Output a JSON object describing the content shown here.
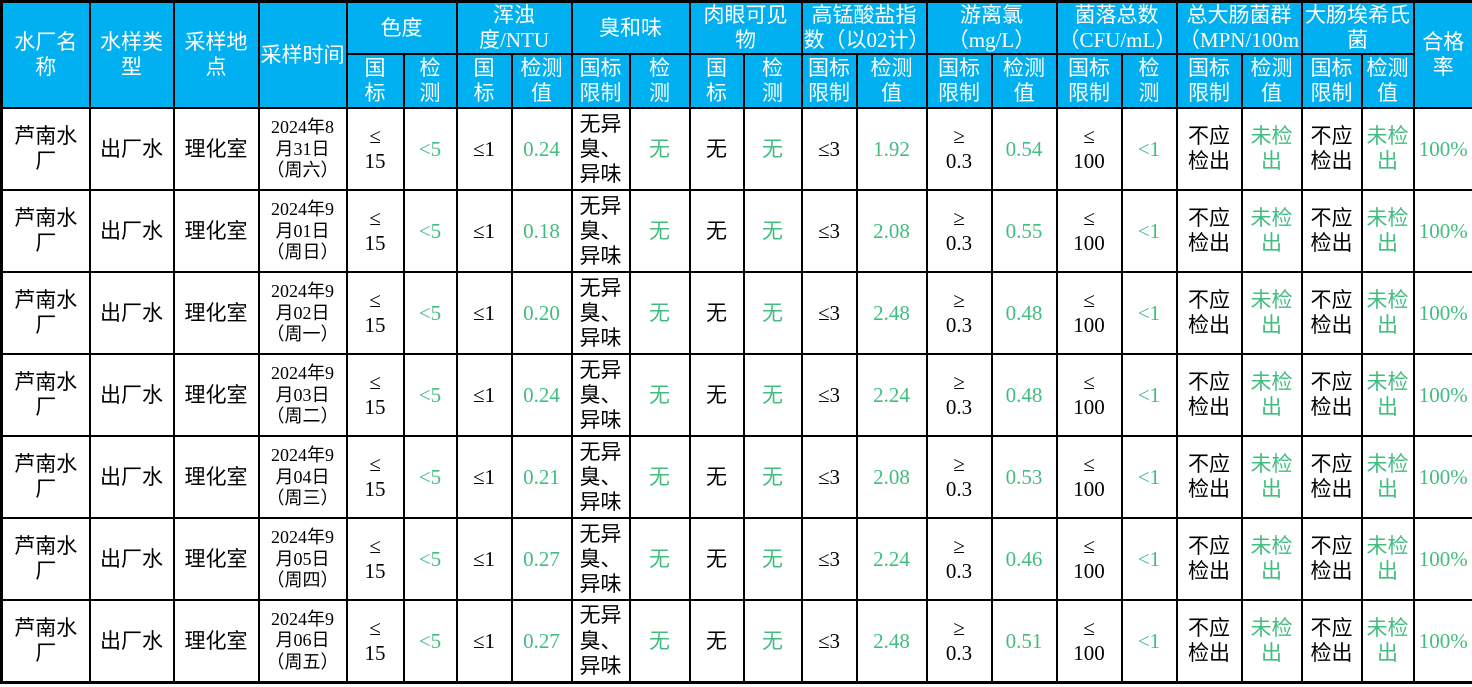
{
  "colors": {
    "header_bg": "#00B0F0",
    "header_text": "#FFFFFF",
    "value_green": "#42BD80",
    "text_black": "#000000",
    "grid": "#000000"
  },
  "table": {
    "columns": [
      {
        "key": "plant",
        "label": "水厂名称",
        "single": true
      },
      {
        "key": "sample_type",
        "label": "水样类型",
        "single": true
      },
      {
        "key": "location",
        "label": "采样地点",
        "single": true
      },
      {
        "key": "date",
        "label": "采样时间",
        "single": true
      },
      {
        "key": "chroma",
        "label": "色度",
        "sub": [
          {
            "key": "std",
            "label": "国\n标"
          },
          {
            "key": "test",
            "label": "检\n测"
          }
        ]
      },
      {
        "key": "turbidity",
        "label": "浑浊度/NTU",
        "sub": [
          {
            "key": "std",
            "label": "国\n标"
          },
          {
            "key": "test",
            "label": "检测\n值"
          }
        ]
      },
      {
        "key": "odor",
        "label": "臭和味",
        "sub": [
          {
            "key": "std",
            "label": "国标\n限制"
          },
          {
            "key": "test",
            "label": "检\n测"
          }
        ]
      },
      {
        "key": "visible",
        "label": "肉眼可见\n物",
        "sub": [
          {
            "key": "std",
            "label": "国\n标"
          },
          {
            "key": "test",
            "label": "检\n测"
          }
        ]
      },
      {
        "key": "permanganate",
        "label": "高锰酸盐指\n数（以02计）",
        "sub": [
          {
            "key": "std",
            "label": "国标\n限制"
          },
          {
            "key": "test",
            "label": "检测\n值"
          }
        ]
      },
      {
        "key": "chlorine",
        "label": "游离氯\n（mg/L）",
        "sub": [
          {
            "key": "std",
            "label": "国标\n限制"
          },
          {
            "key": "test",
            "label": "检测\n值"
          }
        ]
      },
      {
        "key": "colony",
        "label": "菌落总数\n（CFU/mL）",
        "sub": [
          {
            "key": "std",
            "label": "国标\n限制"
          },
          {
            "key": "test",
            "label": "检\n测"
          }
        ]
      },
      {
        "key": "coliform",
        "label": "总大肠菌群\n（MPN/100m",
        "sub": [
          {
            "key": "std",
            "label": "国标\n限制"
          },
          {
            "key": "test",
            "label": "检测\n值"
          }
        ]
      },
      {
        "key": "ecoli",
        "label": "大肠埃希氏\n菌",
        "sub": [
          {
            "key": "std",
            "label": "国标\n限制"
          },
          {
            "key": "test",
            "label": "检测\n值"
          }
        ]
      },
      {
        "key": "pass_rate",
        "label": "合格率",
        "single": true,
        "green": true
      }
    ],
    "rows": [
      {
        "plant": "芦南水厂",
        "sample_type": "出厂水",
        "location": "理化室",
        "date": "2024年8\n月31日\n（周六）",
        "chroma": {
          "std": "≤\n15",
          "test": "<5"
        },
        "turbidity": {
          "std": "≤1",
          "test": "0.24"
        },
        "odor": {
          "std": "无异\n臭、\n异味",
          "test": "无"
        },
        "visible": {
          "std": "无",
          "test": "无"
        },
        "permanganate": {
          "std": "≤3",
          "test": "1.92"
        },
        "chlorine": {
          "std": "≥\n0.3",
          "test": "0.54"
        },
        "colony": {
          "std": "≤\n100",
          "test": "<1"
        },
        "coliform": {
          "std": "不应\n检出",
          "test": "未检\n出"
        },
        "ecoli": {
          "std": "不应\n检出",
          "test": "未检\n出"
        },
        "pass_rate": "100%"
      },
      {
        "plant": "芦南水厂",
        "sample_type": "出厂水",
        "location": "理化室",
        "date": "2024年9\n月01日\n（周日）",
        "chroma": {
          "std": "≤\n15",
          "test": "<5"
        },
        "turbidity": {
          "std": "≤1",
          "test": "0.18"
        },
        "odor": {
          "std": "无异\n臭、\n异味",
          "test": "无"
        },
        "visible": {
          "std": "无",
          "test": "无"
        },
        "permanganate": {
          "std": "≤3",
          "test": "2.08"
        },
        "chlorine": {
          "std": "≥\n0.3",
          "test": "0.55"
        },
        "colony": {
          "std": "≤\n100",
          "test": "<1"
        },
        "coliform": {
          "std": "不应\n检出",
          "test": "未检\n出"
        },
        "ecoli": {
          "std": "不应\n检出",
          "test": "未检\n出"
        },
        "pass_rate": "100%"
      },
      {
        "plant": "芦南水厂",
        "sample_type": "出厂水",
        "location": "理化室",
        "date": "2024年9\n月02日\n（周一）",
        "chroma": {
          "std": "≤\n15",
          "test": "<5"
        },
        "turbidity": {
          "std": "≤1",
          "test": "0.20"
        },
        "odor": {
          "std": "无异\n臭、\n异味",
          "test": "无"
        },
        "visible": {
          "std": "无",
          "test": "无"
        },
        "permanganate": {
          "std": "≤3",
          "test": "2.48"
        },
        "chlorine": {
          "std": "≥\n0.3",
          "test": "0.48"
        },
        "colony": {
          "std": "≤\n100",
          "test": "<1"
        },
        "coliform": {
          "std": "不应\n检出",
          "test": "未检\n出"
        },
        "ecoli": {
          "std": "不应\n检出",
          "test": "未检\n出"
        },
        "pass_rate": "100%"
      },
      {
        "plant": "芦南水厂",
        "sample_type": "出厂水",
        "location": "理化室",
        "date": "2024年9\n月03日\n（周二）",
        "chroma": {
          "std": "≤\n15",
          "test": "<5"
        },
        "turbidity": {
          "std": "≤1",
          "test": "0.24"
        },
        "odor": {
          "std": "无异\n臭、\n异味",
          "test": "无"
        },
        "visible": {
          "std": "无",
          "test": "无"
        },
        "permanganate": {
          "std": "≤3",
          "test": "2.24"
        },
        "chlorine": {
          "std": "≥\n0.3",
          "test": "0.48"
        },
        "colony": {
          "std": "≤\n100",
          "test": "<1"
        },
        "coliform": {
          "std": "不应\n检出",
          "test": "未检\n出"
        },
        "ecoli": {
          "std": "不应\n检出",
          "test": "未检\n出"
        },
        "pass_rate": "100%"
      },
      {
        "plant": "芦南水厂",
        "sample_type": "出厂水",
        "location": "理化室",
        "date": "2024年9\n月04日\n（周三）",
        "chroma": {
          "std": "≤\n15",
          "test": "<5"
        },
        "turbidity": {
          "std": "≤1",
          "test": "0.21"
        },
        "odor": {
          "std": "无异\n臭、\n异味",
          "test": "无"
        },
        "visible": {
          "std": "无",
          "test": "无"
        },
        "permanganate": {
          "std": "≤3",
          "test": "2.08"
        },
        "chlorine": {
          "std": "≥\n0.3",
          "test": "0.53"
        },
        "colony": {
          "std": "≤\n100",
          "test": "<1"
        },
        "coliform": {
          "std": "不应\n检出",
          "test": "未检\n出"
        },
        "ecoli": {
          "std": "不应\n检出",
          "test": "未检\n出"
        },
        "pass_rate": "100%"
      },
      {
        "plant": "芦南水厂",
        "sample_type": "出厂水",
        "location": "理化室",
        "date": "2024年9\n月05日\n（周四）",
        "chroma": {
          "std": "≤\n15",
          "test": "<5"
        },
        "turbidity": {
          "std": "≤1",
          "test": "0.27"
        },
        "odor": {
          "std": "无异\n臭、\n异味",
          "test": "无"
        },
        "visible": {
          "std": "无",
          "test": "无"
        },
        "permanganate": {
          "std": "≤3",
          "test": "2.24"
        },
        "chlorine": {
          "std": "≥\n0.3",
          "test": "0.46"
        },
        "colony": {
          "std": "≤\n100",
          "test": "<1"
        },
        "coliform": {
          "std": "不应\n检出",
          "test": "未检\n出"
        },
        "ecoli": {
          "std": "不应\n检出",
          "test": "未检\n出"
        },
        "pass_rate": "100%"
      },
      {
        "plant": "芦南水厂",
        "sample_type": "出厂水",
        "location": "理化室",
        "date": "2024年9\n月06日\n（周五）",
        "chroma": {
          "std": "≤\n15",
          "test": "<5"
        },
        "turbidity": {
          "std": "≤1",
          "test": "0.27"
        },
        "odor": {
          "std": "无异\n臭、\n异味",
          "test": "无"
        },
        "visible": {
          "std": "无",
          "test": "无"
        },
        "permanganate": {
          "std": "≤3",
          "test": "2.48"
        },
        "chlorine": {
          "std": "≥\n0.3",
          "test": "0.51"
        },
        "colony": {
          "std": "≤\n100",
          "test": "<1"
        },
        "coliform": {
          "std": "不应\n检出",
          "test": "未检\n出"
        },
        "ecoli": {
          "std": "不应\n检出",
          "test": "未检\n出"
        },
        "pass_rate": "100%"
      }
    ]
  }
}
